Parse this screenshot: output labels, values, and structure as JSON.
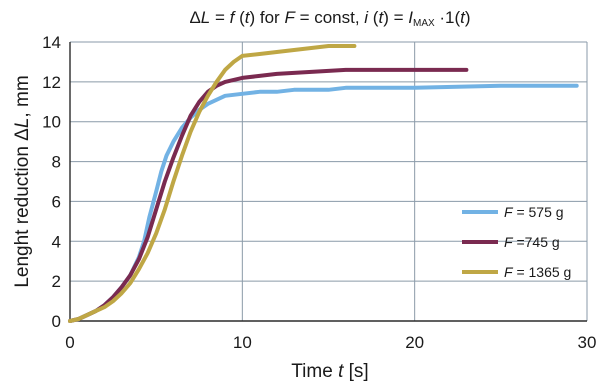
{
  "chart_data": {
    "type": "line",
    "title_parts": [
      {
        "text": "Δ",
        "italic": false
      },
      {
        "text": "L",
        "italic": true
      },
      {
        "text": " = ",
        "italic": false
      },
      {
        "text": "f",
        "italic": true
      },
      {
        "text": " (",
        "italic": false
      },
      {
        "text": "t",
        "italic": true
      },
      {
        "text": ") for ",
        "italic": false
      },
      {
        "text": "F",
        "italic": true
      },
      {
        "text": " = const, ",
        "italic": false
      },
      {
        "text": "i",
        "italic": true
      },
      {
        "text": " (",
        "italic": false
      },
      {
        "text": "t",
        "italic": true
      },
      {
        "text": ") = ",
        "italic": false
      },
      {
        "text": "I",
        "italic": true
      },
      {
        "text": "MAX",
        "italic": false,
        "sub": true
      },
      {
        "text": " ·1(",
        "italic": false
      },
      {
        "text": "t",
        "italic": true
      },
      {
        "text": ")",
        "italic": false
      }
    ],
    "xlabel_parts": [
      {
        "text": "Time ",
        "italic": false
      },
      {
        "text": "t",
        "italic": true
      },
      {
        "text": " [s]",
        "italic": false
      }
    ],
    "ylabel_parts": [
      {
        "text": "Lenght reduction Δ",
        "italic": false
      },
      {
        "text": "L",
        "italic": true
      },
      {
        "text": ", mm",
        "italic": false
      }
    ],
    "xlim": [
      0,
      30
    ],
    "ylim": [
      0,
      14
    ],
    "xticks": [
      0,
      10,
      20,
      30
    ],
    "yticks": [
      0,
      2,
      4,
      6,
      8,
      10,
      12,
      14
    ],
    "grid": true,
    "legend_position": "bottom-right",
    "series": [
      {
        "name_parts": [
          {
            "text": "F",
            "italic": true
          },
          {
            "text": " = 575 g",
            "italic": false
          }
        ],
        "color": "#72b2e4",
        "x": [
          0,
          0.5,
          1,
          1.5,
          2,
          2.5,
          3,
          3.5,
          4,
          4.3,
          4.6,
          5,
          5.3,
          5.6,
          6,
          6.5,
          7,
          7.5,
          8,
          8.5,
          9,
          10,
          11,
          12,
          13,
          15,
          16,
          20,
          25,
          29.4
        ],
        "y": [
          0,
          0.1,
          0.3,
          0.5,
          0.8,
          1.2,
          1.7,
          2.3,
          3.2,
          4.0,
          5.2,
          6.5,
          7.5,
          8.3,
          9.0,
          9.7,
          10.2,
          10.6,
          10.9,
          11.1,
          11.3,
          11.4,
          11.5,
          11.5,
          11.6,
          11.6,
          11.7,
          11.7,
          11.8,
          11.8
        ]
      },
      {
        "name_parts": [
          {
            "text": "F",
            "italic": true
          },
          {
            "text": " =745 g",
            "italic": false
          }
        ],
        "color": "#7a2a50",
        "x": [
          0,
          0.5,
          1,
          1.5,
          2,
          2.5,
          3,
          3.5,
          4,
          4.5,
          5,
          5.5,
          6,
          6.5,
          7,
          7.5,
          8,
          8.5,
          9,
          10,
          11,
          12,
          14,
          16,
          18,
          20,
          23
        ],
        "y": [
          0,
          0.1,
          0.3,
          0.5,
          0.8,
          1.2,
          1.7,
          2.3,
          3.1,
          4.2,
          5.6,
          7.0,
          8.2,
          9.3,
          10.3,
          11.0,
          11.5,
          11.8,
          12.0,
          12.2,
          12.3,
          12.4,
          12.5,
          12.6,
          12.6,
          12.6,
          12.6
        ]
      },
      {
        "name_parts": [
          {
            "text": "F",
            "italic": true
          },
          {
            "text": " = 1365 g",
            "italic": false
          }
        ],
        "color": "#bfa745",
        "x": [
          0,
          0.5,
          1,
          1.5,
          2,
          2.5,
          3,
          3.5,
          4,
          4.5,
          5,
          5.5,
          6,
          6.5,
          7,
          7.5,
          8,
          8.5,
          9,
          9.5,
          10,
          11,
          12,
          13,
          14,
          15,
          16.5
        ],
        "y": [
          0,
          0.1,
          0.3,
          0.5,
          0.7,
          1.0,
          1.4,
          1.9,
          2.6,
          3.4,
          4.4,
          5.6,
          7.0,
          8.3,
          9.5,
          10.5,
          11.3,
          12.0,
          12.6,
          13.0,
          13.3,
          13.4,
          13.5,
          13.6,
          13.7,
          13.8,
          13.8
        ]
      }
    ]
  }
}
